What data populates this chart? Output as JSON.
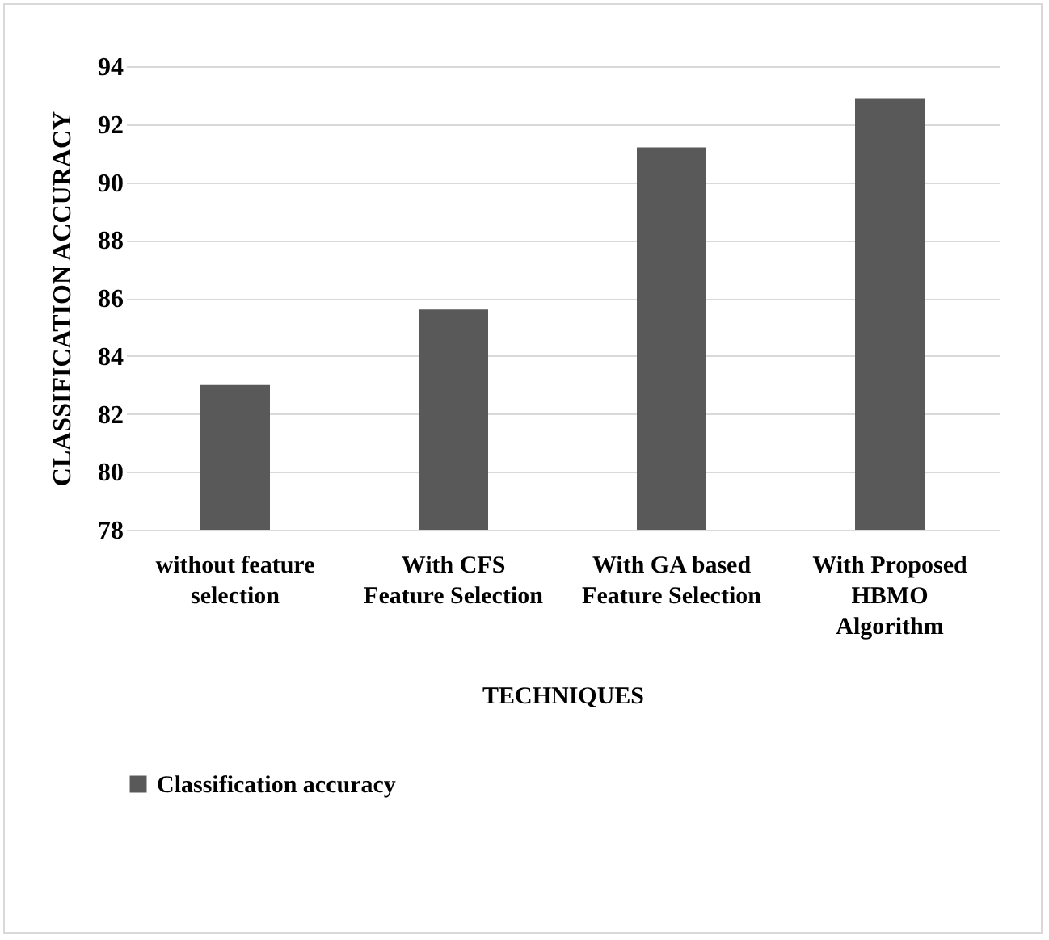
{
  "chart_data": {
    "type": "bar",
    "categories": [
      "without feature\nselection",
      "With CFS\nFeature Selection",
      "With GA based\nFeature Selection",
      "With Proposed\nHBMO\nAlgorithm"
    ],
    "series": [
      {
        "name": "Classification accuracy",
        "color": "#595959",
        "values": [
          83.0,
          85.6,
          91.2,
          92.9
        ]
      }
    ],
    "xlabel": "TECHNIQUES",
    "ylabel": "CLASSIFICATION ACCURACY",
    "ylim": [
      78,
      94
    ],
    "yticks": [
      78,
      80,
      82,
      84,
      86,
      88,
      90,
      92,
      94
    ],
    "grid": "y",
    "legend": "bottom"
  }
}
